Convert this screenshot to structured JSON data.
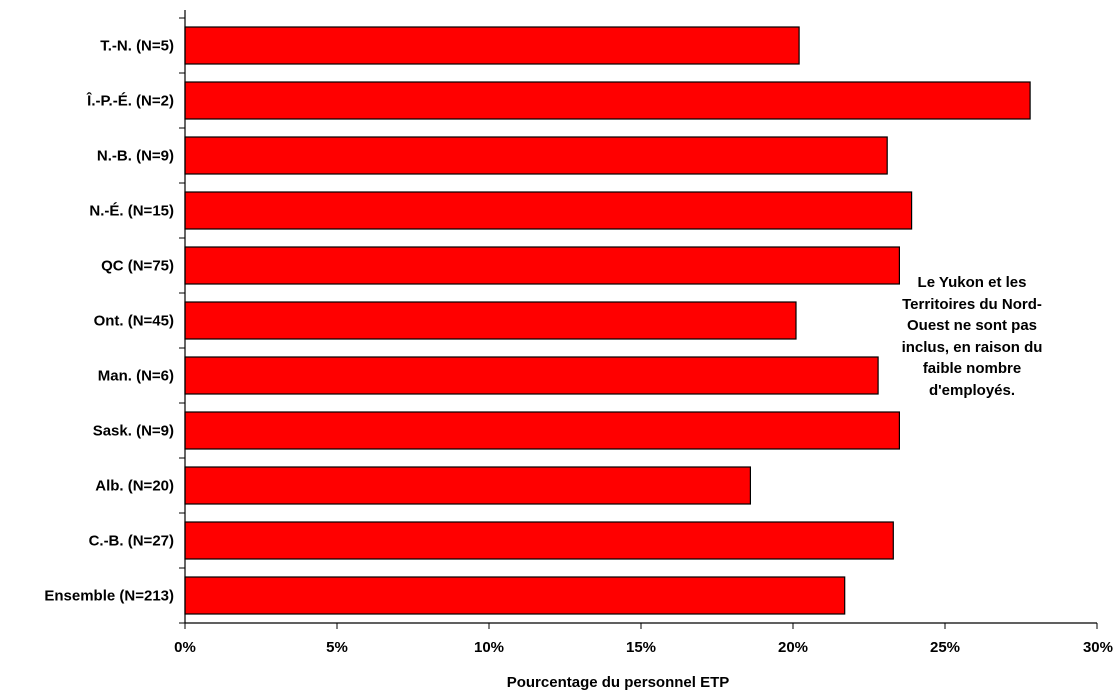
{
  "chart_data": {
    "type": "bar",
    "orientation": "horizontal",
    "categories": [
      "T.-N. (N=5)",
      "Î.-P.-É. (N=2)",
      "N.-B. (N=9)",
      "N.-É. (N=15)",
      "QC (N=75)",
      "Ont. (N=45)",
      "Man. (N=6)",
      "Sask. (N=9)",
      "Alb. (N=20)",
      "C.-B. (N=27)",
      "Ensemble (N=213)"
    ],
    "values": [
      20.2,
      27.8,
      23.1,
      23.9,
      23.5,
      20.1,
      22.8,
      23.5,
      18.6,
      23.3,
      21.7
    ],
    "value_unit": "%",
    "xlabel": "Pourcentage du personnel ETP",
    "ylabel": "",
    "title": "",
    "xlim": [
      0,
      30
    ],
    "x_ticks": [
      "0%",
      "5%",
      "10%",
      "15%",
      "20%",
      "25%",
      "30%"
    ],
    "x_tick_values": [
      0,
      5,
      10,
      15,
      20,
      25,
      30
    ],
    "grid": false,
    "bar_color": "#ff0000",
    "bar_border_color": "#000000",
    "annotation": "Le Yukon et les\nTerritoires du Nord-\nOuest ne sont pas\ninclus, en raison du\nfaible nombre\nd'employés."
  }
}
